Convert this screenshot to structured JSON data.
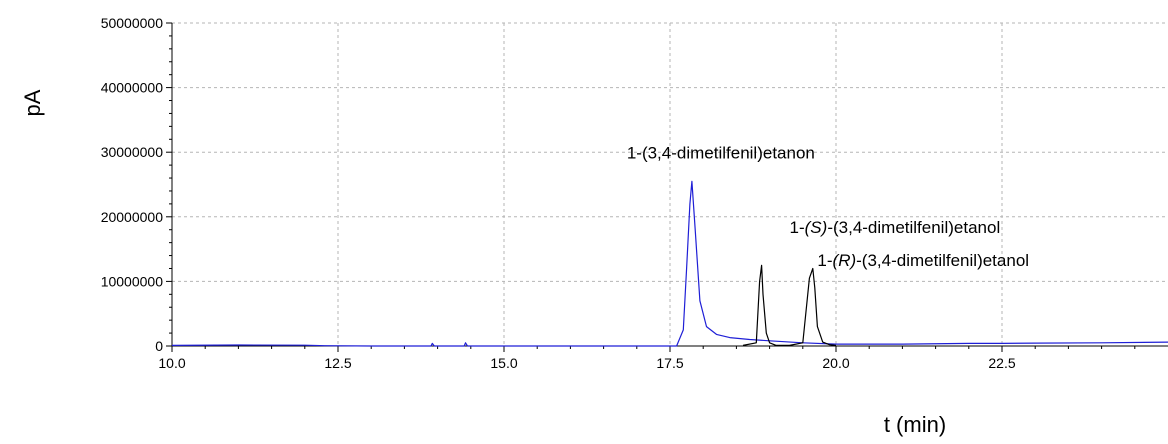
{
  "chart_data": {
    "type": "line",
    "title": "",
    "xlabel": "t (min)",
    "ylabel": "pA",
    "xlim": [
      10.0,
      25.0
    ],
    "ylim": [
      0,
      50000000
    ],
    "x_ticks": [
      10.0,
      12.5,
      15.0,
      17.5,
      20.0,
      22.5
    ],
    "x_tick_labels": [
      "10.0",
      "12.5",
      "15.0",
      "17.5",
      "20.0",
      "22.5"
    ],
    "y_ticks": [
      0,
      10000000,
      20000000,
      30000000,
      40000000,
      50000000
    ],
    "y_tick_labels": [
      "0",
      "10000000",
      "20000000",
      "30000000",
      "40000000",
      "50000000"
    ],
    "grid": true,
    "legend": "none",
    "colors": {
      "series_blue": "#1f1fd6",
      "series_black": "#000000",
      "grid": "#b5b5b5"
    },
    "series": [
      {
        "color": "#1f1fd6",
        "x": [
          10.0,
          11.0,
          12.0,
          12.3,
          13.0,
          13.9,
          13.92,
          13.95,
          14.4,
          14.42,
          14.45,
          15.0,
          16.0,
          17.0,
          17.6,
          17.7,
          17.75,
          17.8,
          17.83,
          17.88,
          17.95,
          18.05,
          18.2,
          18.4,
          18.7,
          19.0,
          19.5,
          20.0,
          21.0,
          22.0,
          22.5,
          23.0,
          24.0,
          25.0
        ],
        "y": [
          100000,
          150000,
          120000,
          50000,
          0,
          0,
          400000,
          0,
          0,
          500000,
          0,
          0,
          0,
          0,
          0,
          2500000,
          12000000,
          22000000,
          25500000,
          18000000,
          7000000,
          3000000,
          1800000,
          1300000,
          1000000,
          800000,
          500000,
          300000,
          300000,
          400000,
          400000,
          450000,
          500000,
          600000
        ]
      },
      {
        "color": "#000000",
        "x": [
          18.6,
          18.8,
          18.85,
          18.88,
          18.9,
          18.95,
          19.0,
          19.1,
          19.3,
          19.5,
          19.6,
          19.65,
          19.68,
          19.72,
          19.8,
          19.9,
          20.0
        ],
        "y": [
          100000,
          500000,
          10000000,
          12500000,
          8000000,
          2000000,
          500000,
          100000,
          100000,
          500000,
          10500000,
          12000000,
          9000000,
          3000000,
          600000,
          200000,
          100000
        ]
      }
    ],
    "annotations": [
      {
        "parts": [
          {
            "text": "1-(3,4-dimetilfenil)etanon",
            "italic": false
          }
        ],
        "x": 16.85,
        "y": 29000000
      },
      {
        "parts": [
          {
            "text": "1-",
            "italic": false
          },
          {
            "text": "(S)",
            "italic": true
          },
          {
            "text": "-(3,4-dimetilfenil)etanol",
            "italic": false
          }
        ],
        "x": 19.3,
        "y": 17500000
      },
      {
        "parts": [
          {
            "text": "1-",
            "italic": false
          },
          {
            "text": "(R)",
            "italic": true
          },
          {
            "text": "-(3,4-dimetilfenil)etanol",
            "italic": false
          }
        ],
        "x": 19.72,
        "y": 12400000
      }
    ]
  }
}
